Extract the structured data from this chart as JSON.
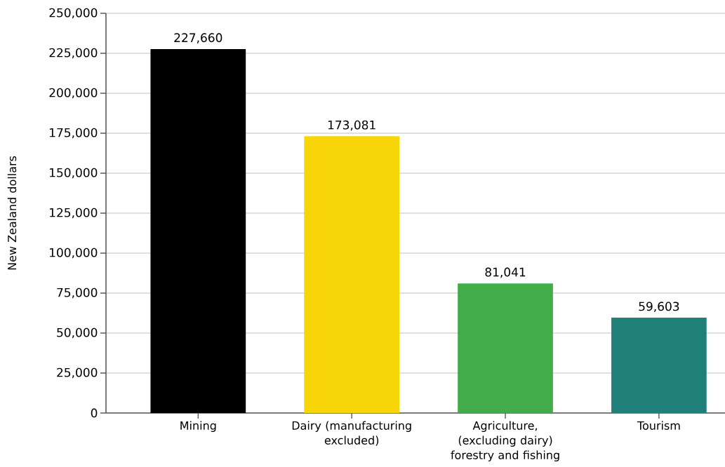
{
  "chart_data": {
    "type": "bar",
    "ylabel": "New Zealand dollars",
    "categories": [
      "Mining",
      "Dairy (manufacturing excluded)",
      "Agriculture, (excluding dairy) forestry and fishing",
      "Tourism"
    ],
    "values": [
      227660,
      173081,
      81041,
      59603
    ],
    "colors": [
      "#000000",
      "#f8d508",
      "#43ac4a",
      "#1f807a"
    ],
    "value_labels": [
      "227,660",
      "173,081",
      "81,041",
      "59,603"
    ],
    "ylim": [
      0,
      250000
    ],
    "yticks": [
      0,
      {
        "value": 25000,
        "label": "25,000"
      },
      {
        "value": 50000,
        "label": "50,000"
      },
      {
        "value": 75000,
        "label": "75,000"
      },
      {
        "value": 100000,
        "label": "100,000"
      },
      {
        "value": 125000,
        "label": "125,000"
      },
      {
        "value": 150000,
        "label": "150,000"
      },
      {
        "value": 175000,
        "label": "175,000"
      },
      {
        "value": 200000,
        "label": "200,000"
      },
      {
        "value": 225000,
        "label": "225,000"
      },
      {
        "value": 250000,
        "label": "250,000"
      }
    ],
    "grid": "y"
  }
}
